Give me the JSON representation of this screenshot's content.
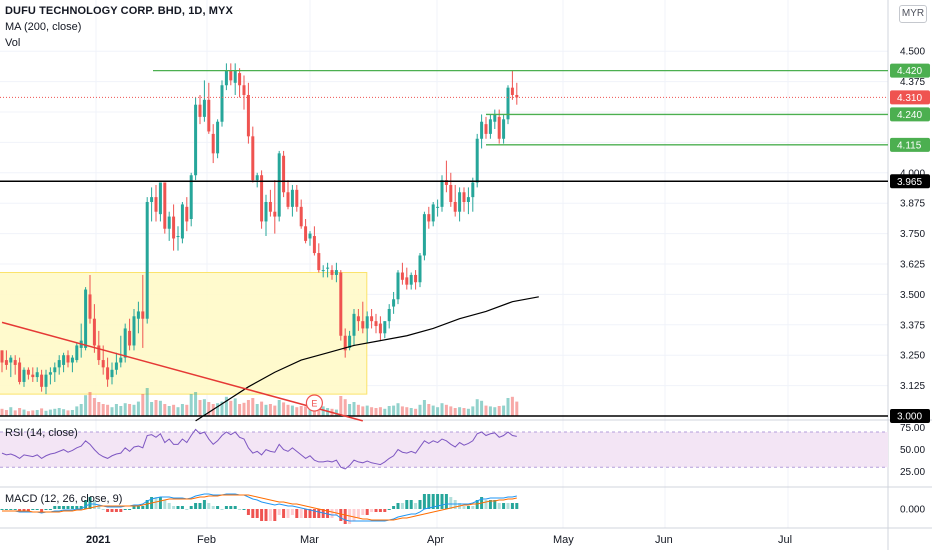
{
  "header": {
    "title": "DUFU TECHNOLOGY CORP. BHD, 1D, MYX",
    "ma_label": "MA (200, close)",
    "vol_label": "Vol",
    "currency": "MYR"
  },
  "rsi_label": "RSI (14, close)",
  "macd_label": "MACD (12, 26, close, 9)",
  "event_marker": "E",
  "colors": {
    "up": "#26a69a",
    "down": "#ef5350",
    "hline_green": "#4caf50",
    "hline_black": "#000000",
    "trendline": "#e53935",
    "ma": "#000000",
    "highlight_fill": "#fff9c4",
    "highlight_border": "#fbe36b",
    "rsi_line": "#7e57c2",
    "rsi_band": "#f3e5f5",
    "macd_line": "#2196f3",
    "signal_line": "#ff6d00"
  },
  "chart_data": [
    {
      "type": "candlestick",
      "ylim": [
        3.0,
        4.55
      ],
      "y_ticks": [
        "3.125",
        "3.250",
        "3.375",
        "3.500",
        "3.625",
        "3.750",
        "3.875",
        "4.000",
        "4.125",
        "4.250",
        "4.375",
        "4.500"
      ],
      "x_labels": [
        "2021",
        "Feb",
        "Mar",
        "Apr",
        "May",
        "Jun",
        "Jul"
      ],
      "price_levels": [
        {
          "label": "4.420",
          "value": 4.42,
          "kind": "green"
        },
        {
          "label": "4.310",
          "value": 4.31,
          "kind": "last"
        },
        {
          "label": "4.240",
          "value": 4.24,
          "kind": "green"
        },
        {
          "label": "4.115",
          "value": 4.115,
          "kind": "green"
        },
        {
          "label": "3.965",
          "value": 3.965,
          "kind": "black"
        },
        {
          "label": "3.000",
          "value": 3.0,
          "kind": "black"
        }
      ],
      "candles": [
        [
          3.27,
          3.27,
          3.18,
          3.22
        ],
        [
          3.23,
          3.27,
          3.19,
          3.21
        ],
        [
          3.22,
          3.25,
          3.16,
          3.24
        ],
        [
          3.23,
          3.25,
          3.17,
          3.21
        ],
        [
          3.22,
          3.24,
          3.13,
          3.14
        ],
        [
          3.14,
          3.2,
          3.12,
          3.19
        ],
        [
          3.19,
          3.2,
          3.15,
          3.17
        ],
        [
          3.17,
          3.2,
          3.14,
          3.16
        ],
        [
          3.16,
          3.2,
          3.14,
          3.18
        ],
        [
          3.17,
          3.19,
          3.1,
          3.12
        ],
        [
          3.12,
          3.19,
          3.09,
          3.17
        ],
        [
          3.17,
          3.2,
          3.13,
          3.18
        ],
        [
          3.18,
          3.22,
          3.14,
          3.2
        ],
        [
          3.2,
          3.25,
          3.17,
          3.23
        ],
        [
          3.21,
          3.26,
          3.18,
          3.25
        ],
        [
          3.25,
          3.27,
          3.2,
          3.22
        ],
        [
          3.22,
          3.25,
          3.18,
          3.24
        ],
        [
          3.23,
          3.3,
          3.22,
          3.29
        ],
        [
          3.28,
          3.38,
          3.24,
          3.31
        ],
        [
          3.28,
          3.53,
          3.27,
          3.52
        ],
        [
          3.5,
          3.58,
          3.38,
          3.4
        ],
        [
          3.4,
          3.46,
          3.26,
          3.29
        ],
        [
          3.29,
          3.35,
          3.21,
          3.23
        ],
        [
          3.23,
          3.29,
          3.17,
          3.2
        ],
        [
          3.2,
          3.24,
          3.12,
          3.15
        ],
        [
          3.16,
          3.22,
          3.13,
          3.19
        ],
        [
          3.19,
          3.26,
          3.17,
          3.22
        ],
        [
          3.22,
          3.33,
          3.2,
          3.24
        ],
        [
          3.24,
          3.38,
          3.22,
          3.36
        ],
        [
          3.35,
          3.4,
          3.27,
          3.29
        ],
        [
          3.29,
          3.44,
          3.27,
          3.41
        ],
        [
          3.4,
          3.47,
          3.34,
          3.43
        ],
        [
          3.43,
          3.58,
          3.28,
          3.4
        ],
        [
          3.4,
          3.9,
          3.38,
          3.88
        ],
        [
          3.88,
          3.94,
          3.8,
          3.9
        ],
        [
          3.9,
          3.95,
          3.8,
          3.84
        ],
        [
          3.83,
          3.96,
          3.8,
          3.96
        ],
        [
          3.96,
          3.96,
          3.75,
          3.77
        ],
        [
          3.77,
          3.84,
          3.72,
          3.82
        ],
        [
          3.82,
          3.87,
          3.68,
          3.73
        ],
        [
          3.74,
          3.78,
          3.68,
          3.74
        ],
        [
          3.73,
          3.88,
          3.71,
          3.87
        ],
        [
          3.86,
          3.9,
          3.76,
          3.8
        ],
        [
          3.81,
          4.0,
          3.78,
          3.99
        ],
        [
          3.99,
          4.31,
          3.97,
          4.28
        ],
        [
          4.28,
          4.32,
          4.2,
          4.23
        ],
        [
          4.23,
          4.38,
          4.21,
          4.3
        ],
        [
          4.3,
          4.37,
          4.16,
          4.17
        ],
        [
          4.16,
          4.2,
          4.04,
          4.08
        ],
        [
          4.08,
          4.22,
          4.06,
          4.21
        ],
        [
          4.21,
          4.38,
          4.19,
          4.36
        ],
        [
          4.36,
          4.45,
          4.34,
          4.42
        ],
        [
          4.42,
          4.45,
          4.36,
          4.38
        ],
        [
          4.37,
          4.45,
          4.32,
          4.42
        ],
        [
          4.41,
          4.43,
          4.31,
          4.36
        ],
        [
          4.36,
          4.4,
          4.26,
          4.32
        ],
        [
          4.32,
          4.37,
          4.12,
          4.15
        ],
        [
          4.15,
          4.19,
          3.96,
          3.97
        ],
        [
          3.97,
          4.0,
          3.94,
          3.99
        ],
        [
          3.99,
          4.01,
          3.77,
          3.8
        ],
        [
          3.8,
          3.91,
          3.74,
          3.88
        ],
        [
          3.88,
          3.93,
          3.82,
          3.84
        ],
        [
          3.84,
          3.97,
          3.75,
          3.82
        ],
        [
          3.82,
          4.09,
          3.8,
          4.08
        ],
        [
          4.07,
          4.09,
          3.9,
          3.92
        ],
        [
          3.92,
          3.97,
          3.85,
          3.86
        ],
        [
          3.86,
          3.95,
          3.82,
          3.93
        ],
        [
          3.93,
          3.95,
          3.84,
          3.86
        ],
        [
          3.86,
          3.89,
          3.77,
          3.78
        ],
        [
          3.78,
          3.81,
          3.71,
          3.72
        ],
        [
          3.73,
          3.76,
          3.7,
          3.75
        ],
        [
          3.74,
          3.78,
          3.66,
          3.67
        ],
        [
          3.67,
          3.71,
          3.59,
          3.6
        ],
        [
          3.6,
          3.62,
          3.57,
          3.6
        ],
        [
          3.61,
          3.63,
          3.57,
          3.61
        ],
        [
          3.6,
          3.62,
          3.56,
          3.58
        ],
        [
          3.58,
          3.63,
          3.55,
          3.6
        ],
        [
          3.59,
          3.6,
          3.31,
          3.33
        ],
        [
          3.33,
          3.36,
          3.24,
          3.27
        ],
        [
          3.28,
          3.35,
          3.27,
          3.33
        ],
        [
          3.33,
          3.44,
          3.29,
          3.42
        ],
        [
          3.41,
          3.44,
          3.35,
          3.39
        ],
        [
          3.39,
          3.47,
          3.34,
          3.36
        ],
        [
          3.36,
          3.43,
          3.3,
          3.41
        ],
        [
          3.41,
          3.44,
          3.36,
          3.39
        ],
        [
          3.39,
          3.42,
          3.34,
          3.37
        ],
        [
          3.38,
          3.41,
          3.31,
          3.34
        ],
        [
          3.34,
          3.39,
          3.32,
          3.39
        ],
        [
          3.39,
          3.46,
          3.36,
          3.44
        ],
        [
          3.45,
          3.51,
          3.42,
          3.48
        ],
        [
          3.48,
          3.6,
          3.46,
          3.59
        ],
        [
          3.59,
          3.63,
          3.54,
          3.56
        ],
        [
          3.57,
          3.61,
          3.52,
          3.54
        ],
        [
          3.54,
          3.59,
          3.52,
          3.58
        ],
        [
          3.58,
          3.6,
          3.52,
          3.55
        ],
        [
          3.55,
          3.67,
          3.53,
          3.66
        ],
        [
          3.66,
          3.84,
          3.64,
          3.83
        ],
        [
          3.83,
          3.86,
          3.77,
          3.8
        ],
        [
          3.8,
          3.88,
          3.78,
          3.87
        ],
        [
          3.86,
          3.89,
          3.82,
          3.86
        ],
        [
          3.86,
          3.99,
          3.84,
          3.97
        ],
        [
          3.97,
          4.05,
          3.92,
          3.95
        ],
        [
          3.95,
          4.0,
          3.86,
          3.88
        ],
        [
          3.88,
          3.95,
          3.82,
          3.84
        ],
        [
          3.84,
          3.94,
          3.8,
          3.92
        ],
        [
          3.92,
          3.94,
          3.84,
          3.88
        ],
        [
          3.88,
          3.94,
          3.83,
          3.9
        ],
        [
          3.9,
          3.98,
          3.84,
          3.96
        ],
        [
          3.96,
          4.16,
          3.94,
          4.14
        ],
        [
          4.14,
          4.24,
          4.1,
          4.21
        ],
        [
          4.2,
          4.23,
          4.14,
          4.16
        ],
        [
          4.16,
          4.24,
          4.14,
          4.22
        ],
        [
          4.21,
          4.26,
          4.18,
          4.24
        ],
        [
          4.23,
          4.26,
          4.12,
          4.14
        ],
        [
          4.14,
          4.24,
          4.12,
          4.22
        ],
        [
          4.22,
          4.36,
          4.2,
          4.35
        ],
        [
          4.35,
          4.42,
          4.3,
          4.32
        ],
        [
          4.32,
          4.37,
          4.28,
          4.31
        ]
      ],
      "volume": [
        0.18,
        0.15,
        0.22,
        0.14,
        0.2,
        0.16,
        0.12,
        0.14,
        0.15,
        0.19,
        0.13,
        0.16,
        0.18,
        0.2,
        0.17,
        0.14,
        0.15,
        0.24,
        0.3,
        0.52,
        0.6,
        0.45,
        0.35,
        0.3,
        0.28,
        0.22,
        0.3,
        0.25,
        0.32,
        0.3,
        0.28,
        0.36,
        0.55,
        0.7,
        0.35,
        0.4,
        0.38,
        0.3,
        0.25,
        0.28,
        0.22,
        0.3,
        0.28,
        0.55,
        0.6,
        0.4,
        0.42,
        0.35,
        0.3,
        0.32,
        0.36,
        0.48,
        0.38,
        0.44,
        0.3,
        0.33,
        0.4,
        0.45,
        0.3,
        0.36,
        0.28,
        0.3,
        0.26,
        0.4,
        0.34,
        0.28,
        0.26,
        0.22,
        0.25,
        0.24,
        0.2,
        0.22,
        0.3,
        0.24,
        0.2,
        0.18,
        0.16,
        0.5,
        0.42,
        0.3,
        0.35,
        0.28,
        0.24,
        0.26,
        0.22,
        0.2,
        0.22,
        0.18,
        0.25,
        0.26,
        0.32,
        0.24,
        0.22,
        0.2,
        0.18,
        0.28,
        0.4,
        0.3,
        0.26,
        0.22,
        0.32,
        0.28,
        0.24,
        0.2,
        0.22,
        0.2,
        0.18,
        0.24,
        0.42,
        0.38,
        0.26,
        0.24,
        0.22,
        0.25,
        0.26,
        0.45,
        0.48,
        0.36
      ],
      "ma200": [
        {
          "i": 44,
          "v": 2.98
        },
        {
          "i": 50,
          "v": 3.05
        },
        {
          "i": 56,
          "v": 3.12
        },
        {
          "i": 62,
          "v": 3.18
        },
        {
          "i": 68,
          "v": 3.23
        },
        {
          "i": 74,
          "v": 3.26
        },
        {
          "i": 80,
          "v": 3.29
        },
        {
          "i": 86,
          "v": 3.31
        },
        {
          "i": 92,
          "v": 3.33
        },
        {
          "i": 98,
          "v": 3.36
        },
        {
          "i": 104,
          "v": 3.4
        },
        {
          "i": 110,
          "v": 3.43
        },
        {
          "i": 116,
          "v": 3.47
        },
        {
          "i": 122,
          "v": 3.49
        }
      ],
      "trendline": [
        {
          "i": 0,
          "v": 3.385
        },
        {
          "i": 82,
          "v": 2.98
        }
      ],
      "highlight_box": {
        "i0": -1,
        "i1": 82,
        "top": 3.59,
        "bottom": 3.09
      },
      "event_index": 71
    },
    {
      "type": "line",
      "name": "RSI",
      "y_ticks": [
        "75.00",
        "50.00",
        "25.00"
      ],
      "ylim": [
        20,
        80
      ],
      "band": [
        30,
        70
      ],
      "values": [
        46,
        44,
        45,
        43,
        40,
        44,
        43,
        42,
        44,
        40,
        43,
        45,
        46,
        48,
        50,
        47,
        49,
        52,
        54,
        60,
        56,
        50,
        45,
        42,
        40,
        43,
        45,
        46,
        52,
        48,
        53,
        54,
        52,
        66,
        67,
        64,
        68,
        58,
        62,
        56,
        56,
        62,
        58,
        66,
        73,
        68,
        70,
        62,
        56,
        60,
        66,
        70,
        67,
        70,
        64,
        62,
        52,
        46,
        48,
        44,
        50,
        48,
        47,
        56,
        50,
        48,
        52,
        48,
        44,
        40,
        43,
        38,
        36,
        36,
        37,
        36,
        38,
        30,
        28,
        32,
        38,
        36,
        35,
        37,
        35,
        34,
        33,
        36,
        40,
        43,
        50,
        47,
        46,
        48,
        46,
        53,
        60,
        57,
        60,
        58,
        62,
        60,
        56,
        53,
        58,
        55,
        57,
        60,
        68,
        70,
        66,
        68,
        69,
        64,
        66,
        70,
        66,
        65
      ]
    },
    {
      "type": "line",
      "name": "MACD",
      "y_ticks": [
        "0.000"
      ],
      "ylim": [
        -0.16,
        0.2
      ],
      "macd": [
        -0.02,
        -0.02,
        -0.02,
        -0.02,
        -0.03,
        -0.03,
        -0.03,
        -0.03,
        -0.03,
        -0.04,
        -0.03,
        -0.03,
        -0.02,
        -0.02,
        -0.01,
        -0.01,
        -0.01,
        0.0,
        0.0,
        0.03,
        0.05,
        0.05,
        0.04,
        0.03,
        0.02,
        0.02,
        0.02,
        0.02,
        0.03,
        0.03,
        0.04,
        0.04,
        0.05,
        0.08,
        0.1,
        0.11,
        0.12,
        0.12,
        0.12,
        0.11,
        0.11,
        0.11,
        0.1,
        0.11,
        0.13,
        0.14,
        0.15,
        0.15,
        0.14,
        0.14,
        0.14,
        0.15,
        0.15,
        0.15,
        0.14,
        0.14,
        0.12,
        0.1,
        0.09,
        0.07,
        0.06,
        0.05,
        0.04,
        0.05,
        0.04,
        0.03,
        0.03,
        0.02,
        0.01,
        0.0,
        -0.01,
        -0.02,
        -0.03,
        -0.04,
        -0.05,
        -0.06,
        -0.06,
        -0.09,
        -0.11,
        -0.12,
        -0.12,
        -0.12,
        -0.12,
        -0.12,
        -0.12,
        -0.12,
        -0.12,
        -0.12,
        -0.11,
        -0.1,
        -0.08,
        -0.07,
        -0.06,
        -0.05,
        -0.05,
        -0.03,
        0.0,
        0.01,
        0.02,
        0.03,
        0.04,
        0.05,
        0.05,
        0.05,
        0.05,
        0.05,
        0.05,
        0.06,
        0.08,
        0.1,
        0.1,
        0.11,
        0.11,
        0.11,
        0.11,
        0.12,
        0.12,
        0.13
      ],
      "signal": [
        -0.02,
        -0.02,
        -0.02,
        -0.02,
        -0.02,
        -0.02,
        -0.02,
        -0.03,
        -0.03,
        -0.03,
        -0.03,
        -0.03,
        -0.03,
        -0.03,
        -0.02,
        -0.02,
        -0.02,
        -0.01,
        -0.01,
        0.0,
        0.01,
        0.02,
        0.03,
        0.03,
        0.03,
        0.03,
        0.03,
        0.03,
        0.03,
        0.03,
        0.03,
        0.03,
        0.04,
        0.05,
        0.06,
        0.07,
        0.08,
        0.09,
        0.1,
        0.1,
        0.1,
        0.1,
        0.1,
        0.1,
        0.11,
        0.12,
        0.12,
        0.13,
        0.13,
        0.13,
        0.14,
        0.14,
        0.14,
        0.14,
        0.14,
        0.14,
        0.14,
        0.13,
        0.12,
        0.11,
        0.1,
        0.09,
        0.08,
        0.07,
        0.07,
        0.06,
        0.05,
        0.05,
        0.04,
        0.03,
        0.02,
        0.01,
        0.0,
        -0.01,
        -0.02,
        -0.03,
        -0.04,
        -0.05,
        -0.06,
        -0.07,
        -0.08,
        -0.09,
        -0.1,
        -0.1,
        -0.11,
        -0.11,
        -0.11,
        -0.11,
        -0.11,
        -0.11,
        -0.1,
        -0.09,
        -0.09,
        -0.08,
        -0.07,
        -0.06,
        -0.05,
        -0.04,
        -0.03,
        -0.02,
        -0.01,
        0.0,
        0.01,
        0.02,
        0.03,
        0.04,
        0.04,
        0.05,
        0.05,
        0.06,
        0.07,
        0.08,
        0.08,
        0.09,
        0.09,
        0.1,
        0.1,
        0.11
      ]
    }
  ]
}
